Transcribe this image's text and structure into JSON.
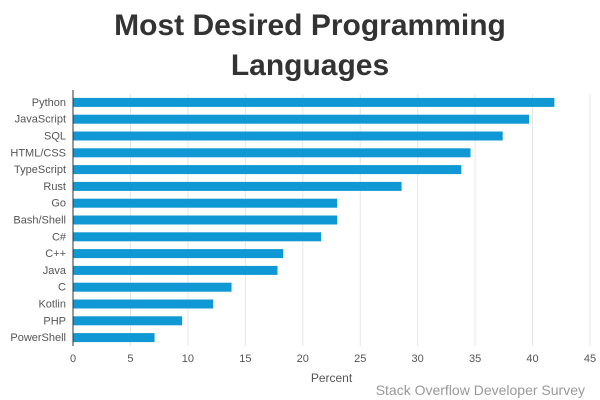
{
  "colors": {
    "bar": "#0f98d3",
    "grid": "#e6e6e6",
    "axis": "#333333",
    "text": "#555555",
    "title": "#333333",
    "source": "#999999"
  },
  "chart_data": {
    "type": "bar",
    "orientation": "horizontal",
    "title_lines": [
      "Most Desired Programming",
      "Languages"
    ],
    "xlabel": "Percent",
    "ylabel": "",
    "xlim": [
      0,
      45
    ],
    "xticks": [
      0,
      5,
      10,
      15,
      20,
      25,
      30,
      35,
      40,
      45
    ],
    "grid": true,
    "categories": [
      "Python",
      "JavaScript",
      "SQL",
      "HTML/CSS",
      "TypeScript",
      "Rust",
      "Go",
      "Bash/Shell",
      "C#",
      "C++",
      "Java",
      "C",
      "Kotlin",
      "PHP",
      "PowerShell"
    ],
    "values": [
      41.9,
      39.7,
      37.4,
      34.6,
      33.8,
      28.6,
      23.0,
      23.0,
      21.6,
      18.3,
      17.8,
      13.8,
      12.2,
      9.5,
      7.1
    ],
    "source": "Stack Overflow Developer Survey"
  }
}
